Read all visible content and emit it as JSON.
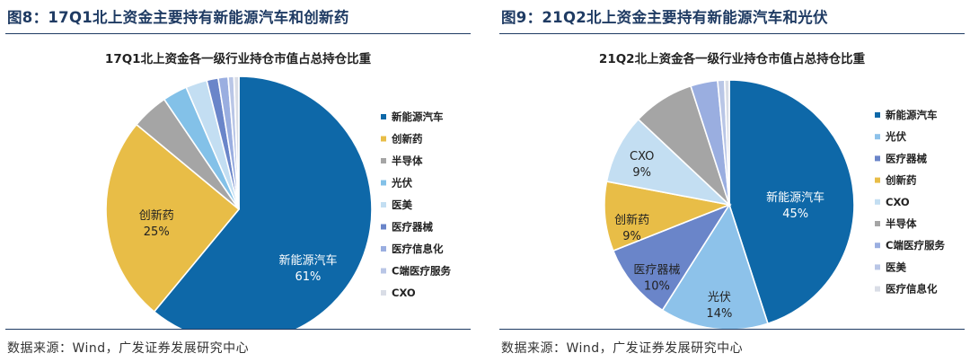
{
  "figures": [
    {
      "fig_title": "图8：17Q1北上资金主要持有新能源汽车和创新药",
      "source": "数据来源：Wind，广发证券发展研究中心",
      "chart_data": {
        "type": "pie",
        "title": "17Q1北上资金各一级行业持仓市值占总持仓比重",
        "legend_position": "right",
        "slices": [
          {
            "name": "新能源汽车",
            "value": 61,
            "color": "#0e68a8",
            "label": "新能源汽车",
            "pct_label": "61%"
          },
          {
            "name": "创新药",
            "value": 25,
            "color": "#e8bd47",
            "label": "创新药",
            "pct_label": "25%"
          },
          {
            "name": "半导体",
            "value": 4.5,
            "color": "#a5a5a5"
          },
          {
            "name": "光伏",
            "value": 3.0,
            "color": "#83c1e8"
          },
          {
            "name": "医美",
            "value": 2.6,
            "color": "#c3def2"
          },
          {
            "name": "医疗器械",
            "value": 1.4,
            "color": "#6a85c9"
          },
          {
            "name": "医疗信息化",
            "value": 1.2,
            "color": "#9aaee0"
          },
          {
            "name": "C端医疗服务",
            "value": 0.7,
            "color": "#b9c6e6"
          },
          {
            "name": "CXO",
            "value": 0.6,
            "color": "#d9dde6"
          }
        ]
      }
    },
    {
      "fig_title": "图9：21Q2北上资金主要持有新能源汽车和光伏",
      "source": "数据来源：Wind，广发证券发展研究中心",
      "chart_data": {
        "type": "pie",
        "title": "21Q2北上资金各一级行业持仓市值占总持仓比重",
        "legend_position": "right",
        "slices": [
          {
            "name": "新能源汽车",
            "value": 45,
            "color": "#0e68a8",
            "label": "新能源汽车",
            "pct_label": "45%"
          },
          {
            "name": "光伏",
            "value": 14,
            "color": "#8dc2ea",
            "label": "光伏",
            "pct_label": "14%"
          },
          {
            "name": "医疗器械",
            "value": 10,
            "color": "#6a85c9",
            "label": "医疗器械",
            "pct_label": "10%"
          },
          {
            "name": "创新药",
            "value": 9,
            "color": "#e8bd47",
            "label": "创新药",
            "pct_label": "9%"
          },
          {
            "name": "CXO",
            "value": 9,
            "color": "#c3def2",
            "label": "CXO",
            "pct_label": "9%"
          },
          {
            "name": "半导体",
            "value": 8,
            "color": "#a5a5a5"
          },
          {
            "name": "C端医疗服务",
            "value": 3.5,
            "color": "#9aaee0"
          },
          {
            "name": "医美",
            "value": 0.9,
            "color": "#b9c6e6"
          },
          {
            "name": "医疗信息化",
            "value": 0.6,
            "color": "#d9dde6"
          }
        ]
      }
    }
  ]
}
